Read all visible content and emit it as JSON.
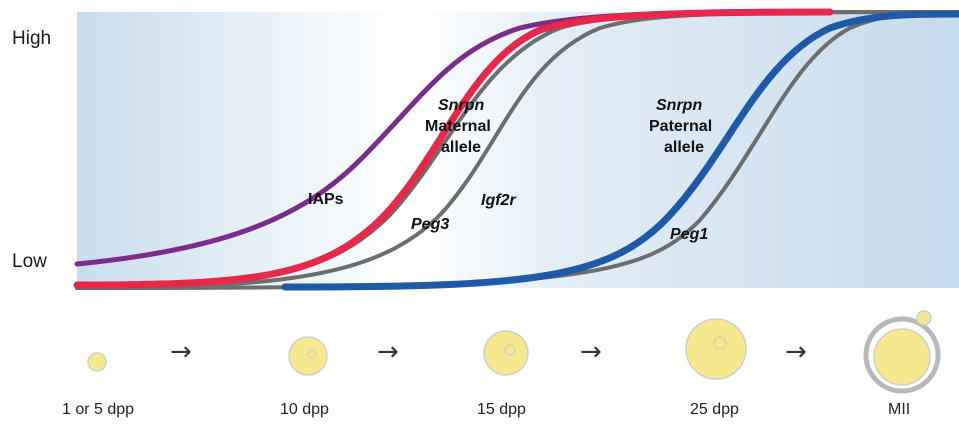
{
  "y_axis": {
    "high": "High",
    "low": "Low"
  },
  "curves": [
    {
      "id": "iaps",
      "color": "#7b2d8e",
      "width": 5
    },
    {
      "id": "maternal",
      "color": "#e8274b",
      "width": 7
    },
    {
      "id": "peg3",
      "color": "#6d6d6d",
      "width": 4
    },
    {
      "id": "igf2r",
      "color": "#6d6d6d",
      "width": 4
    },
    {
      "id": "paternal",
      "color": "#1f5aa8",
      "width": 7
    },
    {
      "id": "peg1",
      "color": "#6d6d6d",
      "width": 4
    }
  ],
  "labels": {
    "iaps": "IAPs",
    "snrpn_maternal": [
      "Snrpn",
      "Maternal",
      "allele"
    ],
    "peg3": "Peg3",
    "igf2r": "Igf2r",
    "snrpn_paternal": [
      "Snrpn",
      "Paternal",
      "allele"
    ],
    "peg1": "Peg1"
  },
  "stages": [
    {
      "label": "1 or  5 dpp"
    },
    {
      "label": "10 dpp"
    },
    {
      "label": "15 dpp"
    },
    {
      "label": "25 dpp"
    },
    {
      "label": "MII"
    }
  ],
  "arrow": "→",
  "colors": {
    "panel_light": "#ffffff",
    "panel_blue": "#c9dded",
    "oocyte_fill": "#f4e98c",
    "oocyte_stroke": "#cfcfcf",
    "zona_stroke": "#b8b8b8"
  }
}
